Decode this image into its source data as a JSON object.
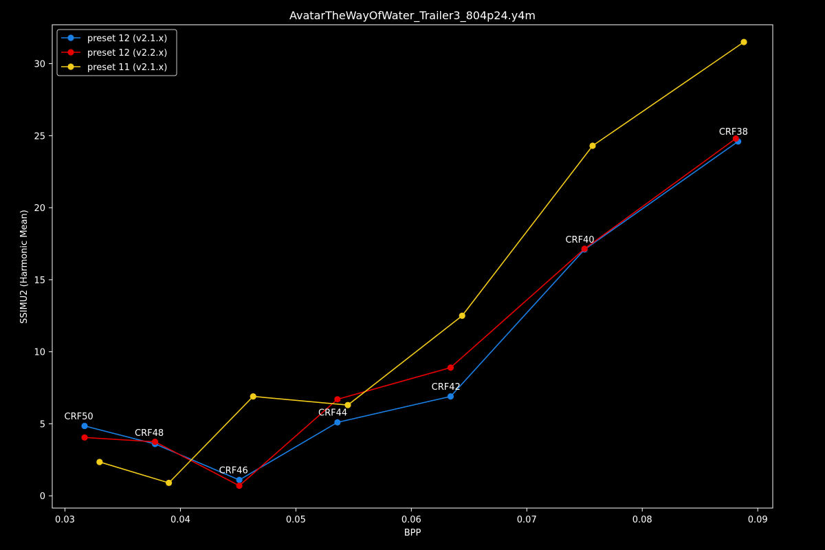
{
  "chart_data": {
    "type": "line",
    "title": "AvatarTheWayOfWater_Trailer3_804p24.y4m",
    "xlabel": "BPP",
    "ylabel": "SSIMU2 (Harmonic Mean)",
    "xlim": [
      0.0289,
      0.0913
    ],
    "ylim": [
      -0.85,
      32.7
    ],
    "xticks": [
      0.03,
      0.04,
      0.05,
      0.06,
      0.07,
      0.08,
      0.09
    ],
    "xtick_labels": [
      "0.03",
      "0.04",
      "0.05",
      "0.06",
      "0.07",
      "0.08",
      "0.09"
    ],
    "yticks": [
      0,
      5,
      10,
      15,
      20,
      25,
      30
    ],
    "ytick_labels": [
      "0",
      "5",
      "10",
      "15",
      "20",
      "25",
      "30"
    ],
    "grid": false,
    "legend_position": "top-left",
    "series": [
      {
        "name": "preset 12 (v2.1.x)",
        "color": "#1a80e6",
        "x": [
          0.0317,
          0.0378,
          0.0451,
          0.0536,
          0.0634,
          0.075,
          0.0883
        ],
        "y": [
          4.85,
          3.6,
          1.1,
          5.1,
          6.9,
          17.1,
          24.6
        ]
      },
      {
        "name": "preset 12 (v2.2.x)",
        "color": "#e60000",
        "x": [
          0.0317,
          0.0378,
          0.0451,
          0.0536,
          0.0634,
          0.075,
          0.0881
        ],
        "y": [
          4.05,
          3.75,
          0.7,
          6.7,
          8.9,
          17.15,
          24.8
        ]
      },
      {
        "name": "preset 11 (v2.1.x)",
        "color": "#f2cc1a",
        "x": [
          0.033,
          0.039,
          0.0463,
          0.0545,
          0.0644,
          0.0757,
          0.0888
        ],
        "y": [
          2.35,
          0.9,
          6.9,
          6.3,
          12.5,
          24.3,
          31.5
        ]
      }
    ],
    "annotations": [
      {
        "text": "CRF50",
        "x": 0.0312,
        "y": 5.55
      },
      {
        "text": "CRF48",
        "x": 0.0373,
        "y": 4.4
      },
      {
        "text": "CRF46",
        "x": 0.0446,
        "y": 1.8
      },
      {
        "text": "CRF44",
        "x": 0.0532,
        "y": 5.8
      },
      {
        "text": "CRF42",
        "x": 0.063,
        "y": 7.6
      },
      {
        "text": "CRF40",
        "x": 0.0746,
        "y": 17.8
      },
      {
        "text": "CRF38",
        "x": 0.0879,
        "y": 25.3
      }
    ]
  }
}
